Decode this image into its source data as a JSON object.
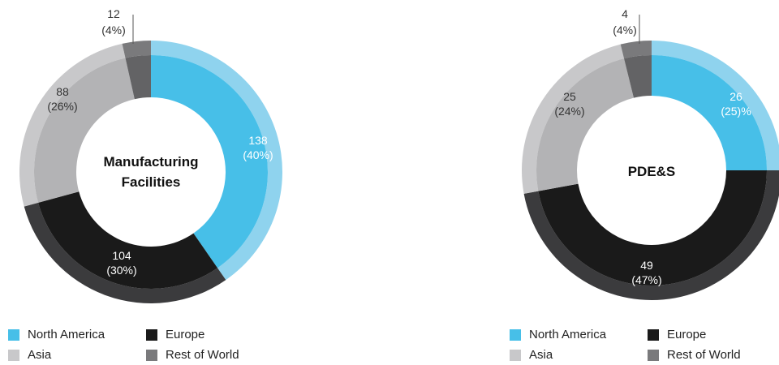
{
  "chart_data": [
    {
      "type": "pie",
      "title": "Manufacturing Facilities",
      "title_lines": [
        "Manufacturing",
        "Facilities"
      ],
      "categories": [
        "North America",
        "Europe",
        "Asia",
        "Rest of World"
      ],
      "values": [
        138,
        104,
        88,
        12
      ],
      "labels": [
        {
          "value": "138",
          "pct": "(40%)"
        },
        {
          "value": "104",
          "pct": "(30%)"
        },
        {
          "value": "88",
          "pct": "(26%)"
        },
        {
          "value": "12",
          "pct": "(4%)"
        }
      ]
    },
    {
      "type": "pie",
      "title": "PDE&S",
      "title_lines": [
        "PDE&S"
      ],
      "categories": [
        "North America",
        "Europe",
        "Asia",
        "Rest of World"
      ],
      "values": [
        26,
        49,
        25,
        4
      ],
      "labels": [
        {
          "value": "26",
          "pct": "(25)%"
        },
        {
          "value": "49",
          "pct": "(47%)"
        },
        {
          "value": "25",
          "pct": "(24%)"
        },
        {
          "value": "4",
          "pct": "(4%)"
        }
      ]
    }
  ],
  "colors": {
    "North America": {
      "outer": "#8fd3ee",
      "inner": "#47bfe8"
    },
    "Europe": {
      "outer": "#3b3b3d",
      "inner": "#1a1a1a"
    },
    "Asia": {
      "outer": "#c8c8ca",
      "inner": "#b3b3b5"
    },
    "Rest of World": {
      "outer": "#7a7a7c",
      "inner": "#636365"
    }
  },
  "legend": {
    "north_america": "North America",
    "europe": "Europe",
    "asia": "Asia",
    "rest_of_world": "Rest of World"
  }
}
